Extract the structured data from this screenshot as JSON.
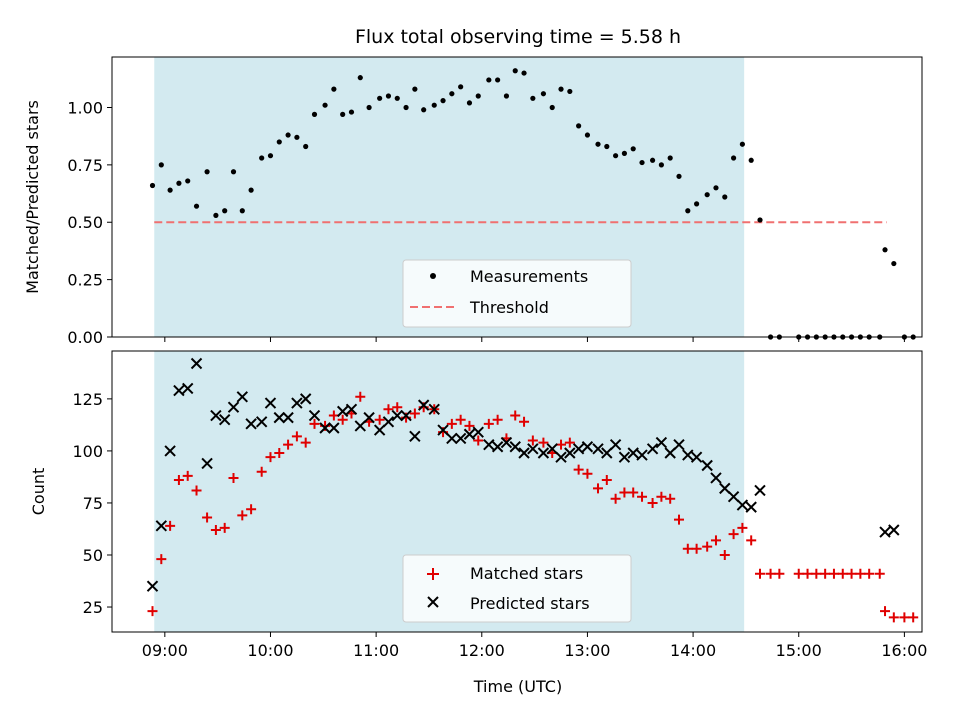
{
  "title": "Flux total observing time = 5.58 h",
  "colors": {
    "shade": "#a8d5e2",
    "threshold": "#f07070",
    "matched": "#e00000",
    "predicted": "#000000",
    "measurement": "#000000"
  },
  "chart_data": [
    {
      "type": "scatter",
      "ylabel": "Matched/Predicted stars",
      "xlim": [
        "08:30",
        "16:10"
      ],
      "ylim": [
        0,
        1.22
      ],
      "yticks": [
        "0.00",
        "0.25",
        "0.50",
        "0.75",
        "1.00"
      ],
      "shaded_interval": [
        "08:54",
        "14:29"
      ],
      "threshold": {
        "y": 0.5,
        "x_range": [
          "08:54",
          "15:50"
        ]
      },
      "legend": {
        "position": "lower-center",
        "entries": [
          "Measurements",
          "Threshold"
        ]
      },
      "series": [
        {
          "name": "Measurements",
          "points": [
            [
              "08:53",
              0.66
            ],
            [
              "08:58",
              0.75
            ],
            [
              "09:03",
              0.64
            ],
            [
              "09:08",
              0.67
            ],
            [
              "09:13",
              0.68
            ],
            [
              "09:18",
              0.57
            ],
            [
              "09:24",
              0.72
            ],
            [
              "09:29",
              0.53
            ],
            [
              "09:34",
              0.55
            ],
            [
              "09:39",
              0.72
            ],
            [
              "09:44",
              0.55
            ],
            [
              "09:49",
              0.64
            ],
            [
              "09:55",
              0.78
            ],
            [
              "10:00",
              0.79
            ],
            [
              "10:05",
              0.85
            ],
            [
              "10:10",
              0.88
            ],
            [
              "10:15",
              0.87
            ],
            [
              "10:20",
              0.83
            ],
            [
              "10:25",
              0.97
            ],
            [
              "10:31",
              1.01
            ],
            [
              "10:36",
              1.08
            ],
            [
              "10:41",
              0.97
            ],
            [
              "10:46",
              0.98
            ],
            [
              "10:51",
              1.13
            ],
            [
              "10:56",
              1.0
            ],
            [
              "11:02",
              1.04
            ],
            [
              "11:07",
              1.05
            ],
            [
              "11:12",
              1.04
            ],
            [
              "11:17",
              1.0
            ],
            [
              "11:22",
              1.08
            ],
            [
              "11:27",
              0.99
            ],
            [
              "11:33",
              1.01
            ],
            [
              "11:38",
              1.03
            ],
            [
              "11:43",
              1.06
            ],
            [
              "11:48",
              1.09
            ],
            [
              "11:53",
              1.02
            ],
            [
              "11:58",
              1.05
            ],
            [
              "12:04",
              1.12
            ],
            [
              "12:09",
              1.12
            ],
            [
              "12:14",
              1.05
            ],
            [
              "12:19",
              1.16
            ],
            [
              "12:24",
              1.15
            ],
            [
              "12:29",
              1.04
            ],
            [
              "12:35",
              1.06
            ],
            [
              "12:40",
              1.0
            ],
            [
              "12:45",
              1.08
            ],
            [
              "12:50",
              1.07
            ],
            [
              "12:55",
              0.92
            ],
            [
              "13:00",
              0.88
            ],
            [
              "13:06",
              0.84
            ],
            [
              "13:11",
              0.83
            ],
            [
              "13:16",
              0.79
            ],
            [
              "13:21",
              0.8
            ],
            [
              "13:26",
              0.82
            ],
            [
              "13:31",
              0.76
            ],
            [
              "13:37",
              0.77
            ],
            [
              "13:42",
              0.75
            ],
            [
              "13:47",
              0.78
            ],
            [
              "13:52",
              0.7
            ],
            [
              "13:57",
              0.55
            ],
            [
              "14:02",
              0.58
            ],
            [
              "14:08",
              0.62
            ],
            [
              "14:13",
              0.65
            ],
            [
              "14:18",
              0.61
            ],
            [
              "14:23",
              0.78
            ],
            [
              "14:28",
              0.84
            ],
            [
              "14:33",
              0.77
            ],
            [
              "14:38",
              0.51
            ],
            [
              "14:44",
              0.0
            ],
            [
              "14:49",
              0.0
            ],
            [
              "15:00",
              0.0
            ],
            [
              "15:05",
              0.0
            ],
            [
              "15:10",
              0.0
            ],
            [
              "15:15",
              0.0
            ],
            [
              "15:20",
              0.0
            ],
            [
              "15:25",
              0.0
            ],
            [
              "15:30",
              0.0
            ],
            [
              "15:35",
              0.0
            ],
            [
              "15:40",
              0.0
            ],
            [
              "15:46",
              0.0
            ],
            [
              "15:49",
              0.38
            ],
            [
              "15:54",
              0.32
            ],
            [
              "16:00",
              0.0
            ],
            [
              "16:05",
              0.0
            ]
          ]
        }
      ]
    },
    {
      "type": "scatter",
      "xlabel": "Time (UTC)",
      "ylabel": "Count",
      "xlim": [
        "08:30",
        "16:10"
      ],
      "ylim": [
        13,
        148
      ],
      "xticks": [
        "09:00",
        "10:00",
        "11:00",
        "12:00",
        "13:00",
        "14:00",
        "15:00",
        "16:00"
      ],
      "yticks": [
        "25",
        "50",
        "75",
        "100",
        "125"
      ],
      "shaded_interval": [
        "08:54",
        "14:29"
      ],
      "legend": {
        "position": "lower-center",
        "entries": [
          "Matched stars",
          "Predicted stars"
        ]
      },
      "series": [
        {
          "name": "Matched stars",
          "marker": "plus",
          "points": [
            [
              "08:53",
              23
            ],
            [
              "08:58",
              48
            ],
            [
              "09:03",
              64
            ],
            [
              "09:08",
              86
            ],
            [
              "09:13",
              88
            ],
            [
              "09:18",
              81
            ],
            [
              "09:24",
              68
            ],
            [
              "09:29",
              62
            ],
            [
              "09:34",
              63
            ],
            [
              "09:39",
              87
            ],
            [
              "09:44",
              69
            ],
            [
              "09:49",
              72
            ],
            [
              "09:55",
              90
            ],
            [
              "10:00",
              97
            ],
            [
              "10:05",
              99
            ],
            [
              "10:10",
              103
            ],
            [
              "10:15",
              107
            ],
            [
              "10:20",
              104
            ],
            [
              "10:25",
              113
            ],
            [
              "10:31",
              112
            ],
            [
              "10:36",
              117
            ],
            [
              "10:41",
              115
            ],
            [
              "10:46",
              118
            ],
            [
              "10:51",
              126
            ],
            [
              "10:56",
              114
            ],
            [
              "11:02",
              115
            ],
            [
              "11:07",
              120
            ],
            [
              "11:12",
              121
            ],
            [
              "11:17",
              116
            ],
            [
              "11:22",
              118
            ],
            [
              "11:27",
              121
            ],
            [
              "11:33",
              120
            ],
            [
              "11:38",
              109
            ],
            [
              "11:43",
              113
            ],
            [
              "11:48",
              115
            ],
            [
              "11:53",
              112
            ],
            [
              "11:58",
              105
            ],
            [
              "12:04",
              113
            ],
            [
              "12:09",
              115
            ],
            [
              "12:14",
              106
            ],
            [
              "12:19",
              117
            ],
            [
              "12:24",
              114
            ],
            [
              "12:29",
              105
            ],
            [
              "12:35",
              104
            ],
            [
              "12:40",
              99
            ],
            [
              "12:45",
              103
            ],
            [
              "12:50",
              104
            ],
            [
              "12:55",
              91
            ],
            [
              "13:00",
              89
            ],
            [
              "13:06",
              82
            ],
            [
              "13:11",
              86
            ],
            [
              "13:16",
              77
            ],
            [
              "13:21",
              80
            ],
            [
              "13:26",
              80
            ],
            [
              "13:31",
              78
            ],
            [
              "13:37",
              75
            ],
            [
              "13:42",
              78
            ],
            [
              "13:47",
              77
            ],
            [
              "13:52",
              67
            ],
            [
              "13:57",
              53
            ],
            [
              "14:02",
              53
            ],
            [
              "14:08",
              54
            ],
            [
              "14:13",
              57
            ],
            [
              "14:18",
              50
            ],
            [
              "14:23",
              60
            ],
            [
              "14:28",
              63
            ],
            [
              "14:33",
              57
            ],
            [
              "14:38",
              41
            ],
            [
              "14:44",
              41
            ],
            [
              "14:49",
              41
            ],
            [
              "15:00",
              41
            ],
            [
              "15:05",
              41
            ],
            [
              "15:10",
              41
            ],
            [
              "15:15",
              41
            ],
            [
              "15:20",
              41
            ],
            [
              "15:25",
              41
            ],
            [
              "15:30",
              41
            ],
            [
              "15:35",
              41
            ],
            [
              "15:40",
              41
            ],
            [
              "15:46",
              41
            ],
            [
              "15:49",
              23
            ],
            [
              "15:54",
              20
            ],
            [
              "16:00",
              20
            ],
            [
              "16:05",
              20
            ]
          ]
        },
        {
          "name": "Predicted stars",
          "marker": "x",
          "points": [
            [
              "08:53",
              35
            ],
            [
              "08:58",
              64
            ],
            [
              "09:03",
              100
            ],
            [
              "09:08",
              129
            ],
            [
              "09:13",
              130
            ],
            [
              "09:18",
              142
            ],
            [
              "09:24",
              94
            ],
            [
              "09:29",
              117
            ],
            [
              "09:34",
              115
            ],
            [
              "09:39",
              121
            ],
            [
              "09:44",
              126
            ],
            [
              "09:49",
              113
            ],
            [
              "09:55",
              114
            ],
            [
              "10:00",
              123
            ],
            [
              "10:05",
              116
            ],
            [
              "10:10",
              116
            ],
            [
              "10:15",
              123
            ],
            [
              "10:20",
              125
            ],
            [
              "10:25",
              117
            ],
            [
              "10:31",
              111
            ],
            [
              "10:36",
              111
            ],
            [
              "10:41",
              119
            ],
            [
              "10:46",
              120
            ],
            [
              "10:51",
              112
            ],
            [
              "10:56",
              116
            ],
            [
              "11:02",
              110
            ],
            [
              "11:07",
              114
            ],
            [
              "11:12",
              117
            ],
            [
              "11:17",
              117
            ],
            [
              "11:22",
              107
            ],
            [
              "11:27",
              122
            ],
            [
              "11:33",
              120
            ],
            [
              "11:38",
              110
            ],
            [
              "11:43",
              106
            ],
            [
              "11:48",
              106
            ],
            [
              "11:53",
              108
            ],
            [
              "11:58",
              109
            ],
            [
              "12:04",
              103
            ],
            [
              "12:09",
              102
            ],
            [
              "12:14",
              104
            ],
            [
              "12:19",
              102
            ],
            [
              "12:24",
              99
            ],
            [
              "12:29",
              101
            ],
            [
              "12:35",
              99
            ],
            [
              "12:40",
              101
            ],
            [
              "12:45",
              97
            ],
            [
              "12:50",
              99
            ],
            [
              "12:55",
              101
            ],
            [
              "13:00",
              102
            ],
            [
              "13:06",
              101
            ],
            [
              "13:11",
              99
            ],
            [
              "13:16",
              103
            ],
            [
              "13:21",
              97
            ],
            [
              "13:26",
              99
            ],
            [
              "13:31",
              98
            ],
            [
              "13:37",
              101
            ],
            [
              "13:42",
              104
            ],
            [
              "13:47",
              99
            ],
            [
              "13:52",
              103
            ],
            [
              "13:57",
              98
            ],
            [
              "14:02",
              97
            ],
            [
              "14:08",
              93
            ],
            [
              "14:13",
              87
            ],
            [
              "14:18",
              82
            ],
            [
              "14:23",
              78
            ],
            [
              "14:28",
              74
            ],
            [
              "14:33",
              73
            ],
            [
              "14:38",
              81
            ],
            [
              "15:49",
              61
            ],
            [
              "15:54",
              62
            ]
          ]
        }
      ]
    }
  ]
}
